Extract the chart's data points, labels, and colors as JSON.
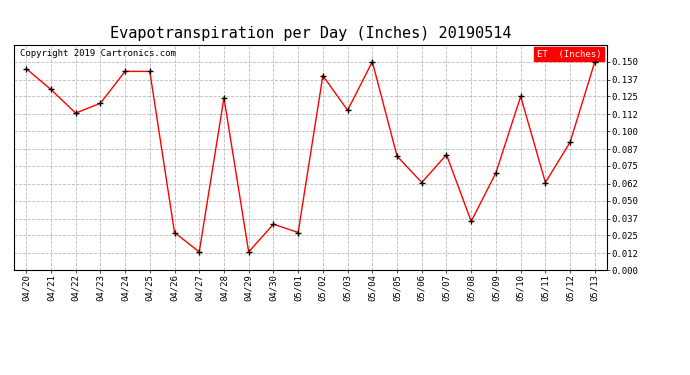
{
  "title": "Evapotranspiration per Day (Inches) 20190514",
  "copyright": "Copyright 2019 Cartronics.com",
  "legend_label": "ET  (Inches)",
  "dates": [
    "04/20",
    "04/21",
    "04/22",
    "04/23",
    "04/24",
    "04/25",
    "04/26",
    "04/27",
    "04/28",
    "04/29",
    "04/30",
    "05/01",
    "05/02",
    "05/03",
    "05/04",
    "05/05",
    "05/06",
    "05/07",
    "05/08",
    "05/09",
    "05/10",
    "05/11",
    "05/12",
    "05/13"
  ],
  "values": [
    0.145,
    0.13,
    0.113,
    0.12,
    0.143,
    0.143,
    0.027,
    0.013,
    0.124,
    0.013,
    0.033,
    0.027,
    0.14,
    0.115,
    0.15,
    0.082,
    0.063,
    0.083,
    0.035,
    0.07,
    0.125,
    0.063,
    0.092,
    0.15
  ],
  "ylim": [
    0.0,
    0.162
  ],
  "yticks": [
    0.0,
    0.012,
    0.025,
    0.037,
    0.05,
    0.062,
    0.075,
    0.087,
    0.1,
    0.112,
    0.125,
    0.137,
    0.15
  ],
  "line_color": "red",
  "marker_color": "black",
  "bg_color": "white",
  "grid_color": "#bbbbbb",
  "title_fontsize": 11,
  "copyright_fontsize": 6.5,
  "tick_fontsize": 6.5,
  "legend_bg": "red",
  "legend_fg": "white",
  "border_color": "black"
}
